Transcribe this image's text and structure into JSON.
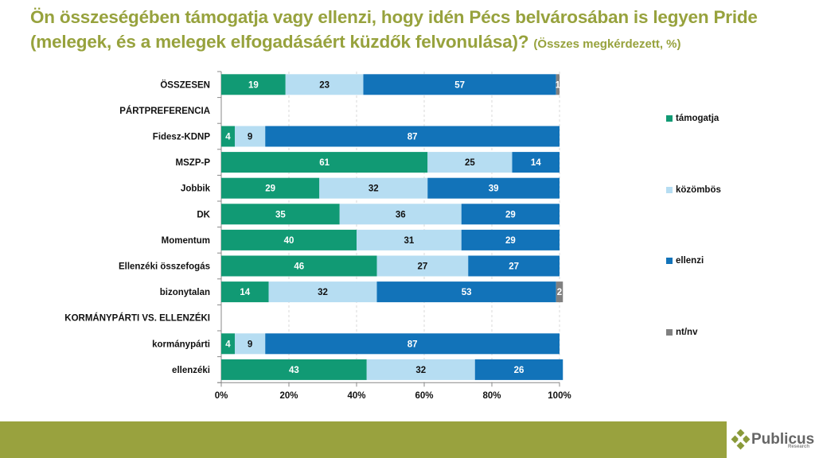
{
  "title": {
    "main": "Ön összeségében támogatja vagy ellenzi, hogy idén Pécs belvárosában is legyen Pride (melegek, és a melegek elfogadásáért küzdők felvonulása)?",
    "sub": "(Összes megkérdezett, %)"
  },
  "chart_data": {
    "type": "bar",
    "orientation": "horizontal",
    "stacked": "percent",
    "title": "Ön összeségében támogatja vagy ellenzi, hogy idén Pécs belvárosában is legyen Pride (melegek, és a melegek elfogadásáért küzdők felvonulása)? (Összes megkérdezett, %)",
    "xlabel": "",
    "ylabel": "",
    "xlim": [
      0,
      100
    ],
    "x_ticks": [
      "0%",
      "20%",
      "40%",
      "60%",
      "80%",
      "100%"
    ],
    "grid": "vertical dashed",
    "legend_position": "right",
    "categories": [
      "ÖSSZESEN",
      "PÁRTPREFERENCIA",
      "Fidesz-KDNP",
      "MSZP-P",
      "Jobbik",
      "DK",
      "Momentum",
      "Ellenzéki összefogás",
      "bizonytalan",
      "KORMÁNYPÁRTI VS. ELLENZÉKI",
      "kormánypárti",
      "ellenzéki"
    ],
    "series": [
      {
        "name": "támogatja",
        "color": "#119a74",
        "label_color": "#ffffff",
        "values": [
          19,
          null,
          4,
          61,
          29,
          35,
          40,
          46,
          14,
          null,
          4,
          43
        ]
      },
      {
        "name": "közömbös",
        "color": "#b6ddf2",
        "label_color": "#111111",
        "values": [
          23,
          null,
          9,
          25,
          32,
          36,
          31,
          27,
          32,
          null,
          9,
          32
        ]
      },
      {
        "name": "ellenzi",
        "color": "#1273b9",
        "label_color": "#ffffff",
        "values": [
          57,
          null,
          87,
          14,
          39,
          29,
          29,
          27,
          53,
          null,
          87,
          26
        ]
      },
      {
        "name": "nt/nv",
        "color": "#808080",
        "label_color": "#ffffff",
        "values": [
          1,
          null,
          0,
          0,
          0,
          0,
          0,
          0,
          2,
          null,
          0,
          0
        ]
      }
    ]
  },
  "footer": {
    "color": "#99a23e",
    "logo_name": "Publicus",
    "logo_sub": "Research"
  }
}
